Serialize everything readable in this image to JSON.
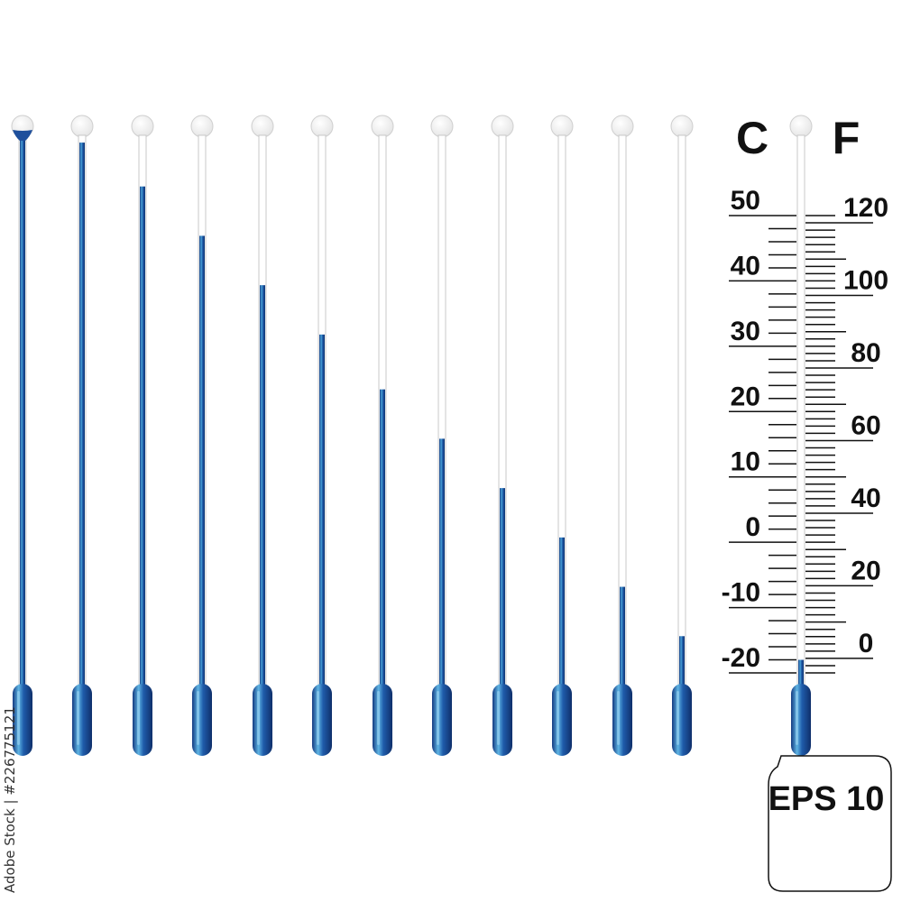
{
  "colors": {
    "fluid": "#1e4f9c",
    "fluid_light": "#4aa3d8",
    "tube_outline": "#c8c8c8",
    "ink": "#111111"
  },
  "thermometers": [
    {
      "fill_percent": 100,
      "overflow": true
    },
    {
      "fill_percent": 99
    },
    {
      "fill_percent": 91
    },
    {
      "fill_percent": 82
    },
    {
      "fill_percent": 73
    },
    {
      "fill_percent": 64
    },
    {
      "fill_percent": 54
    },
    {
      "fill_percent": 45
    },
    {
      "fill_percent": 36
    },
    {
      "fill_percent": 27
    },
    {
      "fill_percent": 18
    },
    {
      "fill_percent": 9
    }
  ],
  "scale": {
    "celsius_label": "C",
    "fahrenheit_label": "F",
    "celsius_ticks": [
      "50",
      "40",
      "30",
      "20",
      "10",
      "0",
      "-10",
      "-20"
    ],
    "fahrenheit_ticks": [
      "120",
      "100",
      "80",
      "60",
      "40",
      "20",
      "0"
    ],
    "reading_celsius": -18
  },
  "badge": {
    "text": "EPS 10"
  },
  "watermark": {
    "text": "Adobe Stock | #226775121"
  }
}
